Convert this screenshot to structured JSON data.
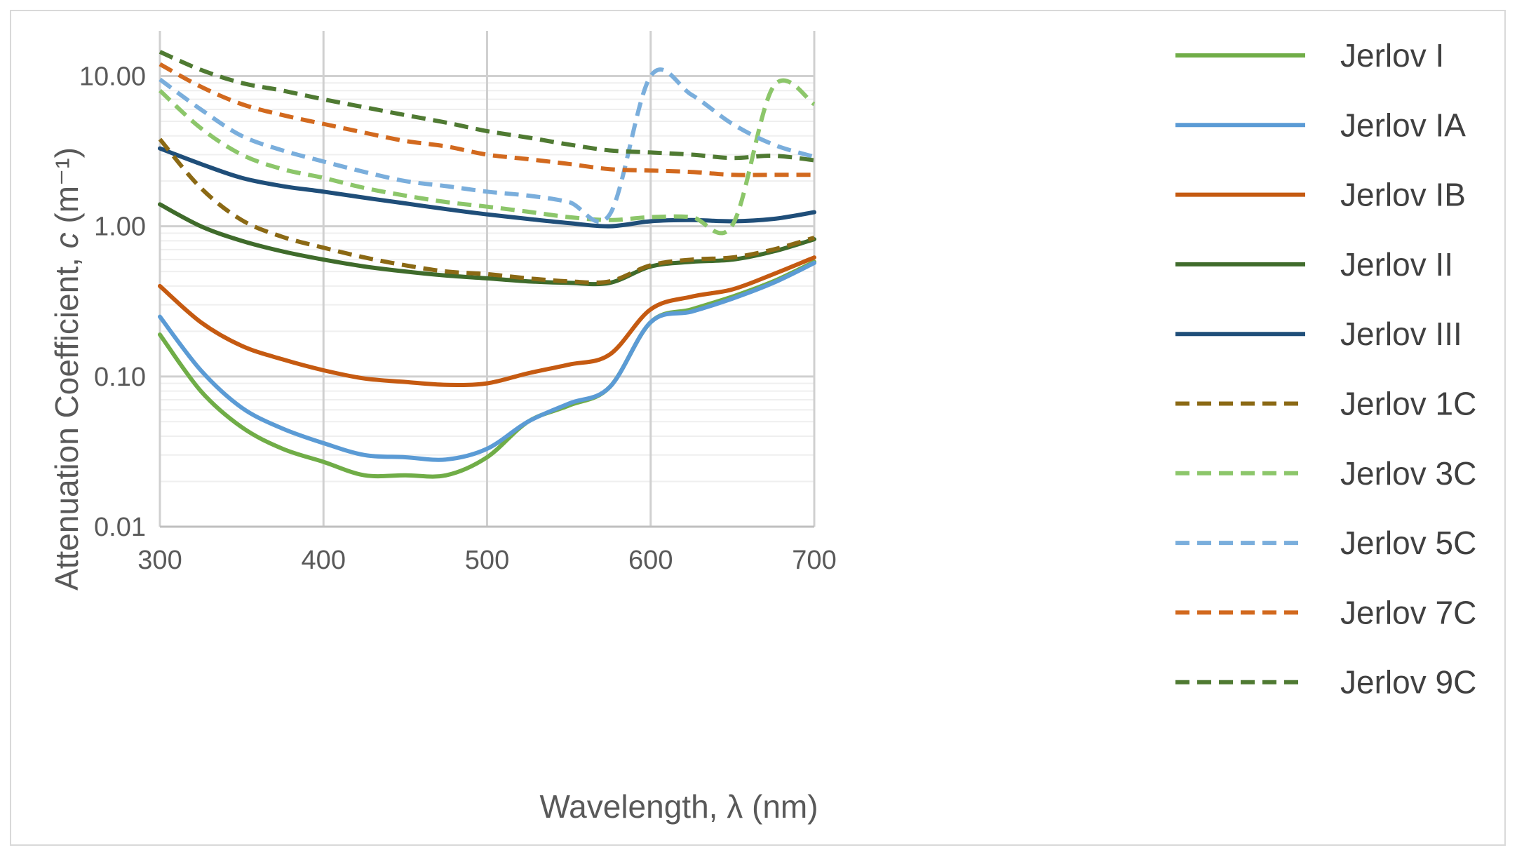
{
  "chart_data": {
    "type": "line",
    "xlabel": "Wavelength, λ (nm)",
    "ylabel_prefix": "Attenuation Coefficient, ",
    "ylabel_var": "c",
    "ylabel_unit": " (m⁻¹)",
    "yscale": "log",
    "xlim": [
      300,
      700
    ],
    "ylim": [
      0.01,
      20
    ],
    "x_ticks": [
      300,
      400,
      500,
      600,
      700
    ],
    "y_ticks": [
      0.01,
      0.1,
      1,
      10
    ],
    "y_tick_labels": [
      "0.01",
      "0.10",
      "1.00",
      "10.00"
    ],
    "grid": true,
    "legend_position": "right",
    "x": [
      300,
      325,
      350,
      375,
      400,
      425,
      450,
      475,
      500,
      525,
      550,
      575,
      600,
      625,
      650,
      675,
      700
    ],
    "series": [
      {
        "name": "Jerlov I",
        "color": "#70ad47",
        "dash": false,
        "values": [
          0.19,
          0.08,
          0.046,
          0.033,
          0.027,
          0.022,
          0.022,
          0.022,
          0.029,
          0.05,
          0.064,
          0.085,
          0.23,
          0.28,
          0.34,
          0.43,
          0.58
        ]
      },
      {
        "name": "Jerlov IA",
        "color": "#5b9bd5",
        "dash": false,
        "values": [
          0.25,
          0.11,
          0.062,
          0.045,
          0.036,
          0.03,
          0.029,
          0.028,
          0.033,
          0.05,
          0.066,
          0.085,
          0.23,
          0.27,
          0.33,
          0.42,
          0.57
        ]
      },
      {
        "name": "Jerlov IB",
        "color": "#c55a11",
        "dash": false,
        "values": [
          0.4,
          0.23,
          0.16,
          0.13,
          0.11,
          0.097,
          0.092,
          0.088,
          0.09,
          0.105,
          0.12,
          0.14,
          0.28,
          0.34,
          0.38,
          0.48,
          0.62
        ]
      },
      {
        "name": "Jerlov II",
        "color": "#3f6b2b",
        "dash": false,
        "values": [
          1.4,
          1.0,
          0.8,
          0.68,
          0.6,
          0.54,
          0.5,
          0.47,
          0.45,
          0.43,
          0.42,
          0.42,
          0.54,
          0.58,
          0.6,
          0.68,
          0.82
        ]
      },
      {
        "name": "Jerlov III",
        "color": "#1f4e79",
        "dash": false,
        "values": [
          3.3,
          2.6,
          2.1,
          1.85,
          1.7,
          1.55,
          1.42,
          1.3,
          1.2,
          1.12,
          1.05,
          1.0,
          1.08,
          1.1,
          1.08,
          1.12,
          1.24
        ]
      },
      {
        "name": "Jerlov 1C",
        "color": "#8b6914",
        "dash": true,
        "values": [
          3.8,
          1.8,
          1.1,
          0.85,
          0.72,
          0.62,
          0.55,
          0.5,
          0.48,
          0.45,
          0.43,
          0.43,
          0.55,
          0.6,
          0.62,
          0.7,
          0.84
        ]
      },
      {
        "name": "Jerlov 3C",
        "color": "#8cc66a",
        "dash": true,
        "values": [
          8.0,
          4.5,
          3.0,
          2.4,
          2.1,
          1.8,
          1.6,
          1.45,
          1.35,
          1.25,
          1.15,
          1.1,
          1.15,
          1.15,
          1.02,
          8.5,
          6.5
        ]
      },
      {
        "name": "Jerlov 5C",
        "color": "#7aaedc",
        "dash": true,
        "values": [
          9.5,
          6.0,
          4.0,
          3.2,
          2.7,
          2.3,
          2.0,
          1.85,
          1.7,
          1.6,
          1.45,
          1.2,
          10.0,
          7.5,
          4.8,
          3.5,
          2.9
        ]
      },
      {
        "name": "Jerlov 7C",
        "color": "#d2691e",
        "dash": true,
        "values": [
          12.0,
          8.5,
          6.5,
          5.5,
          4.8,
          4.2,
          3.7,
          3.4,
          3.0,
          2.8,
          2.6,
          2.4,
          2.35,
          2.3,
          2.2,
          2.2,
          2.2
        ]
      },
      {
        "name": "Jerlov 9C",
        "color": "#4f7a32",
        "dash": true,
        "values": [
          14.5,
          11.0,
          9.0,
          8.0,
          7.0,
          6.2,
          5.5,
          4.9,
          4.3,
          3.9,
          3.5,
          3.2,
          3.1,
          3.0,
          2.85,
          2.95,
          2.75
        ]
      }
    ]
  }
}
